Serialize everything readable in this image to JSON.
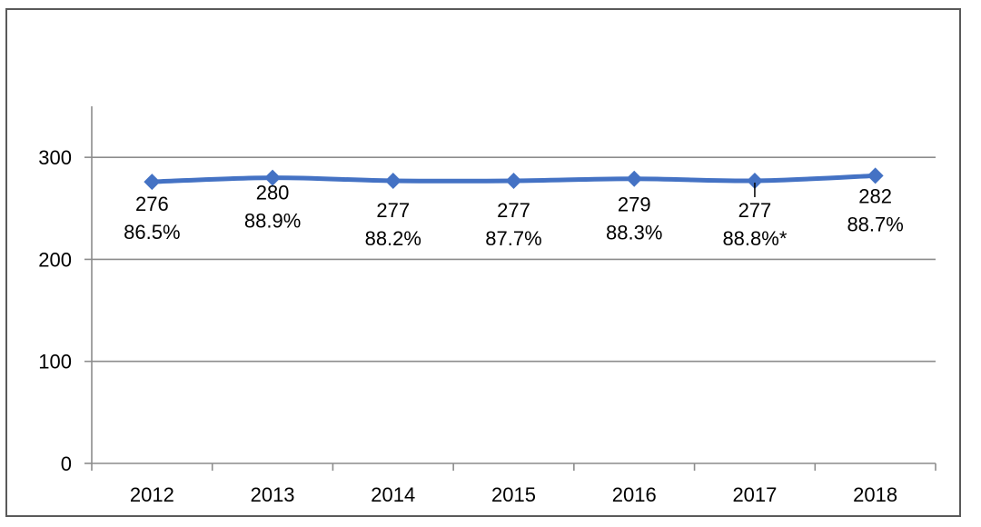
{
  "chart_data": {
    "type": "line",
    "categories": [
      "2012",
      "2013",
      "2014",
      "2015",
      "2016",
      "2017",
      "2018"
    ],
    "values": [
      276,
      280,
      277,
      277,
      279,
      277,
      282
    ],
    "value_labels": [
      "276",
      "280",
      "277",
      "277",
      "279",
      "277",
      "282"
    ],
    "percent_labels": [
      "86.5%",
      "88.9%",
      "88.2%",
      "87.7%",
      "88.3%",
      "88.8%*",
      "88.7%"
    ],
    "ylim": [
      0,
      350
    ],
    "yticks": [
      0,
      100,
      200,
      300
    ],
    "ytick_labels": [
      "0",
      "100",
      "200",
      "300"
    ],
    "grid": true,
    "legend": "none",
    "series_color": "#4472C4",
    "gridline_color": "#8c8c8c",
    "axis_color": "#8c8c8c",
    "frame_color": "#5a5a5a"
  }
}
